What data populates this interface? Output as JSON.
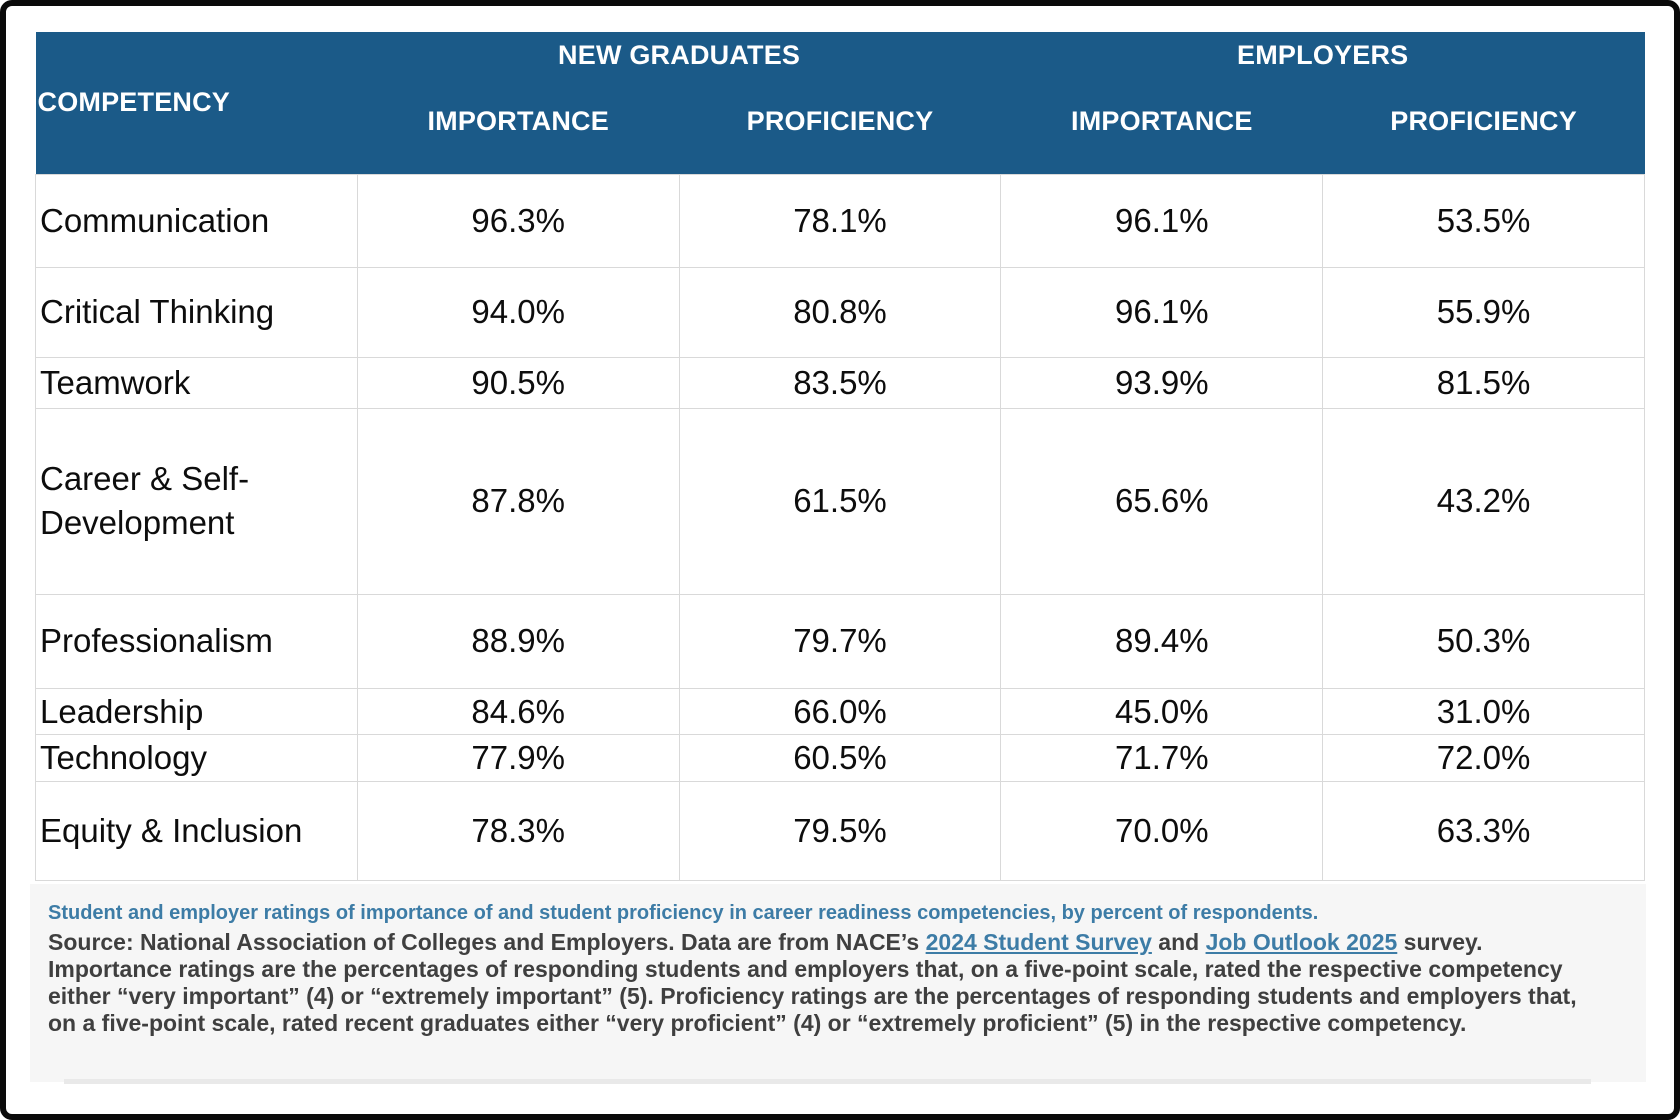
{
  "colors": {
    "header_bg": "#1b5a88",
    "grid_line": "#d9d9d9",
    "caption_blue": "#3d7ca6",
    "link_blue": "#3d7ca6",
    "source_gray": "#3f3f3f",
    "frame_black": "#0a0a0a"
  },
  "table": {
    "competency_header": "COMPETENCY",
    "group_headers": [
      "NEW GRADUATES",
      "EMPLOYERS"
    ],
    "sub_headers": [
      "IMPORTANCE",
      "PROFICIENCY",
      "IMPORTANCE",
      "PROFICIENCY"
    ],
    "rows": [
      {
        "competency": "Communication",
        "values": [
          "96.3%",
          "78.1%",
          "96.1%",
          "53.5%"
        ]
      },
      {
        "competency": "Critical Thinking",
        "values": [
          "94.0%",
          "80.8%",
          "96.1%",
          "55.9%"
        ]
      },
      {
        "competency": "Teamwork",
        "values": [
          "90.5%",
          "83.5%",
          "93.9%",
          "81.5%"
        ]
      },
      {
        "competency": "Career & Self-Development",
        "values": [
          "87.8%",
          "61.5%",
          "65.6%",
          "43.2%"
        ]
      },
      {
        "competency": "Professionalism",
        "values": [
          "88.9%",
          "79.7%",
          "89.4%",
          "50.3%"
        ]
      },
      {
        "competency": "Leadership",
        "values": [
          "84.6%",
          "66.0%",
          "45.0%",
          "31.0%"
        ]
      },
      {
        "competency": "Technology",
        "values": [
          "77.9%",
          "60.5%",
          "71.7%",
          "72.0%"
        ]
      },
      {
        "competency": "Equity & Inclusion",
        "values": [
          "78.3%",
          "79.5%",
          "70.0%",
          "63.3%"
        ]
      }
    ]
  },
  "footer": {
    "caption": "Student and employer ratings of importance of and student proficiency in career readiness competencies, by percent of respondents.",
    "source": {
      "segments": [
        {
          "text": "Source: National Association of Colleges and Employers. Data are from NACE’s "
        },
        {
          "text": "2024 Student Survey",
          "link": true
        },
        {
          "text": " and "
        },
        {
          "text": "Job Outlook 2025",
          "link": true
        },
        {
          "text": " survey. Importance ratings are the percentages of responding students and employers that, on a five-point scale, rated the respective competency either “very important” (4) or “extremely important” (5). Proficiency ratings are the percentages of responding students and employers that, on a five-point scale, rated recent graduates either “very proficient” (4) or “extremely proficient” (5) in the respective competency."
        }
      ]
    }
  },
  "chart_data": {
    "type": "table",
    "title": "Career readiness competencies: importance and proficiency ratings",
    "categories": [
      "Communication",
      "Critical Thinking",
      "Teamwork",
      "Career & Self-Development",
      "Professionalism",
      "Leadership",
      "Technology",
      "Equity & Inclusion"
    ],
    "series": [
      {
        "name": "New Graduates - Importance",
        "values": [
          96.3,
          94.0,
          90.5,
          87.8,
          88.9,
          84.6,
          77.9,
          78.3
        ]
      },
      {
        "name": "New Graduates - Proficiency",
        "values": [
          78.1,
          80.8,
          83.5,
          61.5,
          79.7,
          66.0,
          60.5,
          79.5
        ]
      },
      {
        "name": "Employers - Importance",
        "values": [
          96.1,
          96.1,
          93.9,
          65.6,
          89.4,
          45.0,
          71.7,
          70.0
        ]
      },
      {
        "name": "Employers - Proficiency",
        "values": [
          53.5,
          55.9,
          81.5,
          43.2,
          50.3,
          31.0,
          72.0,
          63.3
        ]
      }
    ],
    "units": "percent of respondents",
    "legend_position": "none",
    "grid": true
  }
}
